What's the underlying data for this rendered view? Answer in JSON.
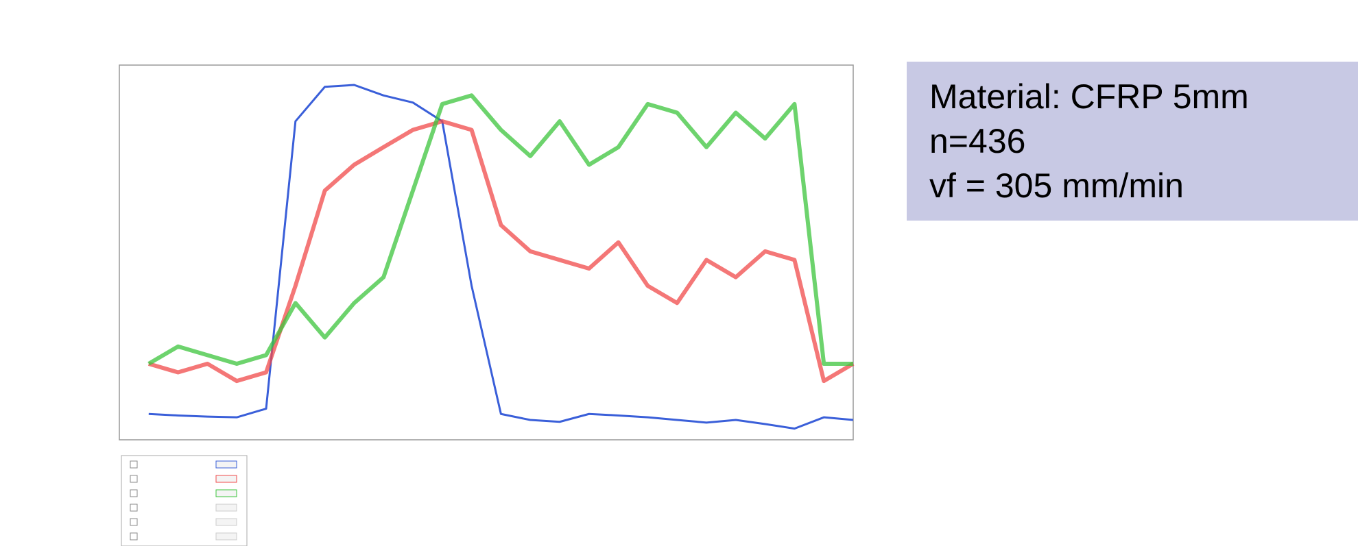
{
  "chart_data": {
    "type": "line",
    "annotations": [
      "Material: CFRP 5mm",
      "n=436",
      "vf = 305 mm/min"
    ],
    "x": [
      4,
      8,
      12,
      16,
      20,
      24,
      28,
      32,
      36,
      40,
      44,
      48,
      52,
      56,
      60,
      64,
      68,
      72,
      76,
      80,
      84,
      88,
      92,
      96,
      100
    ],
    "xlim": [
      0,
      100
    ],
    "ylim": [
      0,
      100
    ],
    "series": [
      {
        "color": "#3a5fd9",
        "values": [
          6.9,
          6.5,
          6.2,
          6.0,
          8.3,
          85,
          94.2,
          94.7,
          91.9,
          90,
          85,
          41.1,
          6.9,
          5.3,
          4.8,
          6.9,
          6.5,
          6.0,
          5.3,
          4.6,
          5.3,
          4.2,
          3.0,
          6.0,
          5.3
        ]
      },
      {
        "color": "#f04a4a",
        "values": [
          20.3,
          18,
          20.3,
          15.7,
          18,
          41.1,
          66.5,
          73.4,
          78.1,
          82.7,
          85,
          82.7,
          57.3,
          50.3,
          48,
          45.7,
          52.7,
          41.1,
          36.5,
          48,
          43.4,
          50.3,
          48,
          15.7,
          20.3
        ]
      },
      {
        "color": "#3cc43c",
        "values": [
          20.3,
          24.9,
          22.6,
          20.3,
          22.6,
          36.5,
          27.3,
          36.5,
          43.4,
          66.5,
          89.6,
          91.9,
          82.7,
          75.7,
          85,
          73.4,
          78.1,
          89.6,
          87.3,
          78.1,
          87.3,
          80.4,
          89.6,
          20.3,
          20.3
        ]
      }
    ]
  }
}
